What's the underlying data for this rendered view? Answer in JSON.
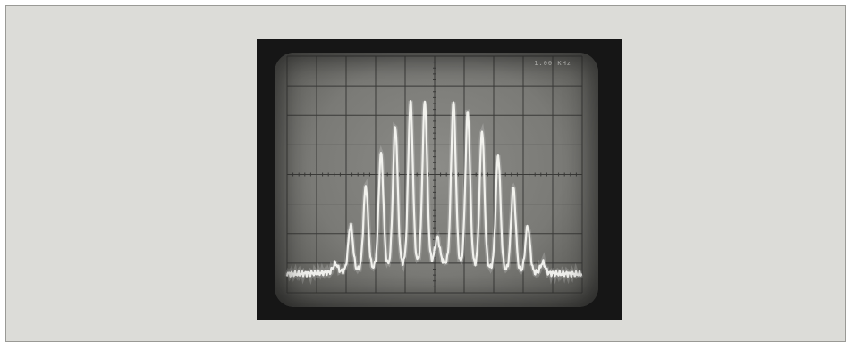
{
  "image": {
    "subject": "spectrum-analyzer-display-photo",
    "corner_readout": "1.00 KHz",
    "colors": {
      "page_background": "#dcdcd8",
      "frame": "#161616",
      "screen": "#7a7a76",
      "grid": "#3a3a38",
      "trace": "#f4f4f0"
    }
  }
}
